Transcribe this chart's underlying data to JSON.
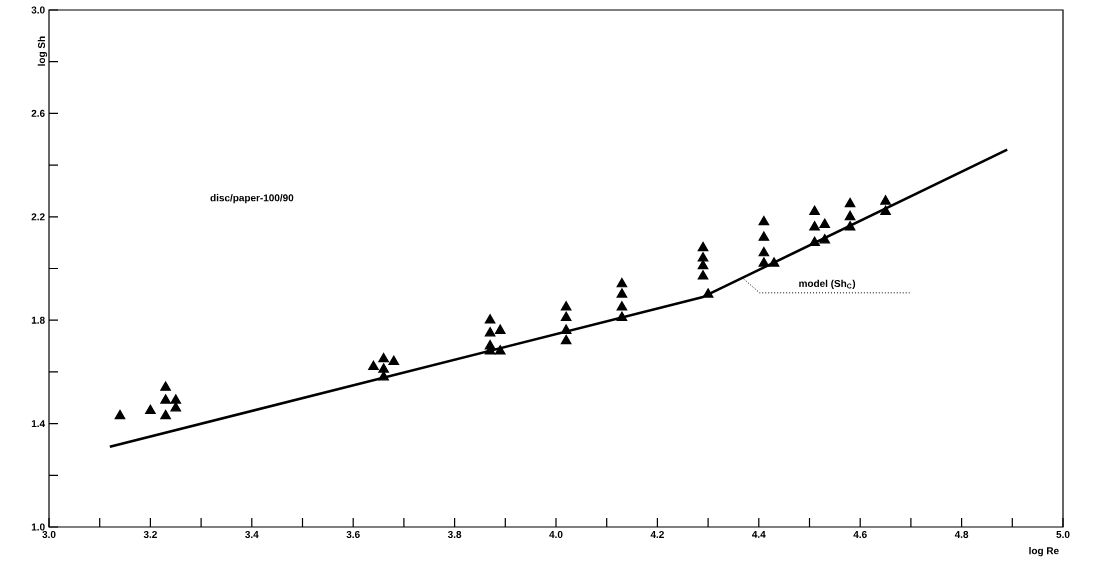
{
  "chart_data": {
    "type": "scatter",
    "xlabel": "log Re",
    "ylabel": "log Sh",
    "xlim": [
      3.0,
      5.0
    ],
    "ylim": [
      1.0,
      3.0
    ],
    "xticks": [
      {
        "value": 3.0,
        "label": "3.0"
      },
      {
        "value": 3.1,
        "label": null
      },
      {
        "value": 3.2,
        "label": "3.2"
      },
      {
        "value": 3.3,
        "label": null
      },
      {
        "value": 3.4,
        "label": "3.4"
      },
      {
        "value": 3.5,
        "label": null
      },
      {
        "value": 3.6,
        "label": "3.6"
      },
      {
        "value": 3.7,
        "label": null
      },
      {
        "value": 3.8,
        "label": "3.8"
      },
      {
        "value": 3.9,
        "label": null
      },
      {
        "value": 4.0,
        "label": "4.0"
      },
      {
        "value": 4.1,
        "label": null
      },
      {
        "value": 4.2,
        "label": "4.2"
      },
      {
        "value": 4.3,
        "label": null
      },
      {
        "value": 4.4,
        "label": "4.4"
      },
      {
        "value": 4.5,
        "label": null
      },
      {
        "value": 4.6,
        "label": "4.6"
      },
      {
        "value": 4.7,
        "label": null
      },
      {
        "value": 4.8,
        "label": "4.8"
      },
      {
        "value": 4.9,
        "label": null
      },
      {
        "value": 5.0,
        "label": "5.0"
      }
    ],
    "yticks": [
      {
        "value": 1.0,
        "label": "1.0"
      },
      {
        "value": 1.2,
        "label": null
      },
      {
        "value": 1.4,
        "label": "1.4"
      },
      {
        "value": 1.6,
        "label": null
      },
      {
        "value": 1.8,
        "label": "1.8"
      },
      {
        "value": 2.0,
        "label": null
      },
      {
        "value": 2.2,
        "label": "2.2"
      },
      {
        "value": 2.4,
        "label": null
      },
      {
        "value": 2.6,
        "label": "2.6"
      },
      {
        "value": 2.8,
        "label": null
      },
      {
        "value": 3.0,
        "label": "3.0"
      }
    ],
    "grid": false,
    "series": [
      {
        "color": "#000000",
        "marker": "triangle",
        "x": [
          3.14,
          3.2,
          3.23,
          3.23,
          3.23,
          3.25,
          3.25,
          3.64,
          3.66,
          3.66,
          3.66,
          3.68,
          3.87,
          3.87,
          3.87,
          3.87,
          3.89,
          3.89,
          4.02,
          4.02,
          4.02,
          4.02,
          4.13,
          4.13,
          4.13,
          4.13,
          4.29,
          4.29,
          4.29,
          4.29,
          4.3,
          4.41,
          4.41,
          4.41,
          4.41,
          4.43,
          4.51,
          4.51,
          4.51,
          4.53,
          4.53,
          4.58,
          4.58,
          4.58,
          4.65,
          4.65
        ],
        "values": [
          1.43,
          1.45,
          1.54,
          1.49,
          1.43,
          1.49,
          1.46,
          1.62,
          1.65,
          1.61,
          1.58,
          1.64,
          1.8,
          1.75,
          1.7,
          1.68,
          1.76,
          1.68,
          1.85,
          1.81,
          1.76,
          1.72,
          1.94,
          1.9,
          1.85,
          1.81,
          2.08,
          2.04,
          2.01,
          1.97,
          1.9,
          2.18,
          2.12,
          2.06,
          2.02,
          2.02,
          2.22,
          2.16,
          2.1,
          2.17,
          2.11,
          2.25,
          2.2,
          2.16,
          2.26,
          2.22
        ]
      },
      {
        "type": "line",
        "color": "#000000",
        "marker": "none",
        "line_style": "solid",
        "x": [
          3.12,
          4.29,
          4.89
        ],
        "values": [
          1.31,
          1.89,
          2.46
        ]
      }
    ],
    "annotations": [
      "disc/paper-100/90",
      {
        "text": "model (Sh$_{C}$)",
        "x": 4.37,
        "y": 1.96
      }
    ]
  }
}
